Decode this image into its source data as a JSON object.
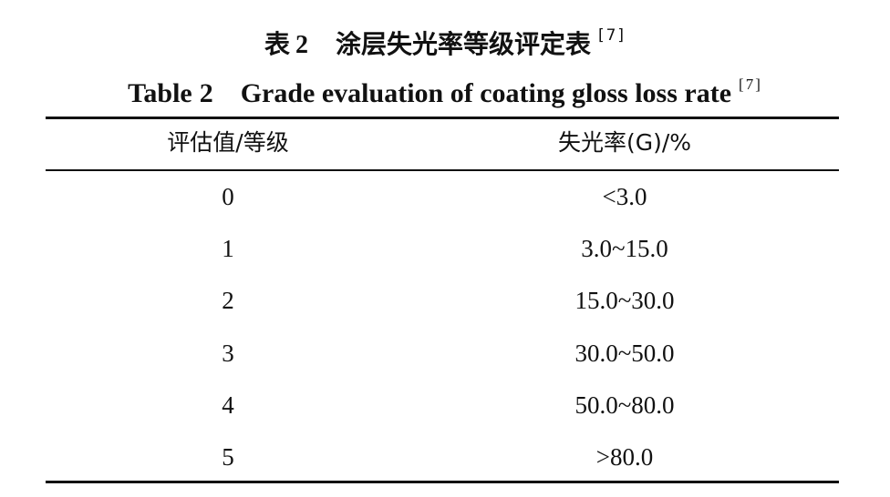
{
  "caption": {
    "cn_label": "表",
    "cn_number": "2",
    "cn_title": "涂层失光率等级评定表",
    "en_label": "Table",
    "en_number": "2",
    "en_title": "Grade evaluation of coating gloss loss rate",
    "ref": "[7]"
  },
  "table": {
    "headers": [
      "评估值/等级",
      "失光率(G)/%"
    ],
    "rows": [
      [
        "0",
        "<3.0"
      ],
      [
        "1",
        "3.0~15.0"
      ],
      [
        "2",
        "15.0~30.0"
      ],
      [
        "3",
        "30.0~50.0"
      ],
      [
        "4",
        "50.0~80.0"
      ],
      [
        "5",
        ">80.0"
      ]
    ]
  }
}
